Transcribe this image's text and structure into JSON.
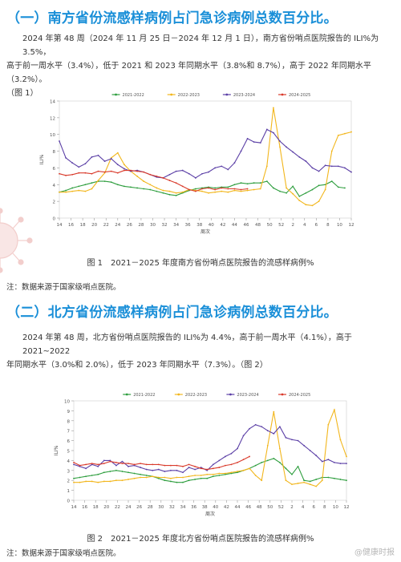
{
  "section1": {
    "heading": "（一）南方省份流感样病例占门急诊病例总数百分比。",
    "para1": "2024 年第 48 周（2024 年 11 月 25 日－2024 年 12 月 1 日），南方省份哨点医院报告的 ILI%为 3.5%，",
    "para2": "高于前一周水平（3.4%），低于 2021 和 2023 年同期水平（3.8%和 8.7%），高于 2022 年同期水平（3.2%）。",
    "para3": "（图 1）",
    "caption": "图 1　2021－2025 年度南方省份哨点医院报告的流感样病例%",
    "note": "注：数据来源于国家级哨点医院。"
  },
  "section2": {
    "heading": "（二）北方省份流感样病例占门急诊病例总数百分比。",
    "para1": "2024 年第 48 周，北方省份哨点医院报告的 ILI%为 4.4%，高于前一周水平（4.1%），高于 2021~2022",
    "para2": "年同期水平（3.0%和 2.0%），低于 2023 年同期水平（7.3%）。（图 2）",
    "caption": "图 2　2021－2025 年度北方省份哨点医院报告的流感样病例%",
    "note": "注：数据来源于国家级哨点医院。"
  },
  "watermark": "@健康时报",
  "series_colors": {
    "2021-2022": "#2e9e3e",
    "2022-2023": "#f2b61c",
    "2023-2024": "#5b3fa6",
    "2024-2025": "#d93a2b"
  },
  "chart_data": [
    {
      "type": "line",
      "ylabel": "ILI%",
      "xlabel": "周次",
      "ylim": [
        0,
        14
      ],
      "yticks": [
        0,
        2,
        4,
        6,
        8,
        10,
        12,
        14
      ],
      "x_ticks": [
        "14",
        "16",
        "18",
        "20",
        "22",
        "24",
        "26",
        "28",
        "30",
        "32",
        "34",
        "36",
        "38",
        "40",
        "42",
        "44",
        "46",
        "48",
        "50",
        "52",
        "2",
        "4",
        "6",
        "8",
        "10",
        "12"
      ],
      "legend": "top",
      "series": [
        {
          "name": "2021-2022",
          "values": [
            3.1,
            3.3,
            3.6,
            3.8,
            4.0,
            4.2,
            4.4,
            4.4,
            4.3,
            4.0,
            3.8,
            3.7,
            3.6,
            3.5,
            3.4,
            3.2,
            3.0,
            2.8,
            2.7,
            3.0,
            3.3,
            3.5,
            3.6,
            3.7,
            3.6,
            3.7,
            3.7,
            4.0,
            4.2,
            4.1,
            4.2,
            4.2,
            4.4,
            3.6,
            3.2,
            3.0,
            3.8,
            2.6,
            3.0,
            3.4,
            3.9,
            4.0,
            4.4,
            3.7,
            3.6
          ]
        },
        {
          "name": "2022-2023",
          "values": [
            3.1,
            3.1,
            3.2,
            3.3,
            3.2,
            3.5,
            4.5,
            5.4,
            7.2,
            7.8,
            6.4,
            5.6,
            5.0,
            4.4,
            4.0,
            3.6,
            3.3,
            3.2,
            3.0,
            3.1,
            3.4,
            3.3,
            3.2,
            3.0,
            3.1,
            3.2,
            3.1,
            3.3,
            3.2,
            3.3,
            3.4,
            3.5,
            6.2,
            13.2,
            8.5,
            3.6,
            2.9,
            2.1,
            1.6,
            1.5,
            2.0,
            3.4,
            8.0,
            9.9,
            10.1,
            10.3
          ]
        },
        {
          "name": "2023-2024",
          "values": [
            9.2,
            7.2,
            6.6,
            6.1,
            6.5,
            7.3,
            7.5,
            6.8,
            7.1,
            6.4,
            5.9,
            5.6,
            5.7,
            5.5,
            5.2,
            4.9,
            4.8,
            5.2,
            5.6,
            5.7,
            5.3,
            4.8,
            5.3,
            5.5,
            6.0,
            6.2,
            5.8,
            6.6,
            8.0,
            9.5,
            9.1,
            9.0,
            10.6,
            10.2,
            9.2,
            8.5,
            7.9,
            7.3,
            6.8,
            6.0,
            5.6,
            6.3,
            6.2,
            6.2,
            6.0,
            5.5
          ]
        },
        {
          "name": "2024-2025",
          "values": [
            5.3,
            5.1,
            5.2,
            5.4,
            5.4,
            5.3,
            5.6,
            5.5,
            5.6,
            5.4,
            5.7,
            5.7,
            5.6,
            5.5,
            5.2,
            5.0,
            4.8,
            4.5,
            4.2,
            3.8,
            3.4,
            3.2,
            3.5,
            3.6,
            3.4,
            3.6,
            3.5,
            3.5,
            3.4,
            3.5
          ]
        }
      ]
    },
    {
      "type": "line",
      "ylabel": "ILI%",
      "xlabel": "周次",
      "ylim": [
        0,
        10
      ],
      "yticks": [
        0,
        1,
        2,
        3,
        4,
        5,
        6,
        7,
        8,
        9,
        10
      ],
      "x_ticks": [
        "14",
        "16",
        "18",
        "20",
        "22",
        "24",
        "26",
        "28",
        "30",
        "32",
        "34",
        "36",
        "38",
        "40",
        "42",
        "44",
        "46",
        "48",
        "50",
        "52",
        "2",
        "4",
        "6",
        "8",
        "10",
        "12"
      ],
      "legend": "top",
      "series": [
        {
          "name": "2021-2022",
          "values": [
            2.2,
            2.3,
            2.4,
            2.5,
            2.6,
            2.8,
            2.9,
            3.0,
            2.9,
            2.8,
            2.7,
            2.6,
            2.5,
            2.4,
            2.2,
            2.0,
            1.9,
            1.8,
            1.8,
            2.0,
            2.1,
            2.2,
            2.2,
            2.4,
            2.5,
            2.6,
            2.7,
            2.8,
            3.0,
            3.2,
            3.5,
            3.8,
            4.0,
            4.2,
            3.8,
            3.2,
            2.6,
            3.4,
            2.0,
            1.9,
            2.1,
            2.3,
            2.3,
            2.2,
            2.1,
            2.0
          ]
        },
        {
          "name": "2022-2023",
          "values": [
            1.8,
            1.8,
            1.9,
            1.9,
            1.8,
            1.9,
            1.9,
            2.0,
            2.0,
            2.1,
            2.2,
            2.3,
            2.3,
            2.4,
            2.3,
            2.3,
            2.2,
            2.3,
            2.3,
            2.4,
            2.5,
            2.5,
            2.6,
            2.6,
            2.7,
            2.7,
            2.8,
            2.9,
            3.0,
            3.2,
            2.5,
            2.0,
            5.5,
            8.9,
            5.2,
            2.0,
            1.6,
            1.7,
            1.8,
            1.6,
            1.4,
            2.0,
            7.6,
            9.1,
            6.1,
            4.4
          ]
        },
        {
          "name": "2023-2024",
          "values": [
            3.6,
            3.4,
            3.2,
            3.6,
            3.4,
            4.0,
            4.0,
            3.5,
            3.9,
            3.4,
            3.5,
            3.3,
            3.1,
            3.0,
            3.1,
            2.9,
            3.0,
            3.0,
            2.8,
            3.3,
            3.1,
            3.3,
            3.0,
            3.6,
            4.0,
            4.4,
            4.7,
            5.2,
            6.5,
            7.2,
            7.6,
            7.4,
            7.0,
            6.7,
            7.4,
            6.3,
            6.1,
            6.0,
            5.5,
            5.0,
            4.5,
            3.9,
            4.1,
            3.8,
            3.7,
            3.7
          ]
        },
        {
          "name": "2024-2025",
          "values": [
            3.8,
            3.5,
            3.6,
            3.7,
            3.6,
            3.7,
            3.9,
            3.8,
            3.7,
            3.7,
            3.6,
            3.7,
            3.6,
            3.6,
            3.6,
            3.5,
            3.5,
            3.5,
            3.4,
            3.6,
            3.4,
            3.2,
            3.1,
            3.2,
            3.3,
            3.5,
            3.6,
            3.8,
            4.1,
            4.4
          ]
        }
      ]
    }
  ]
}
